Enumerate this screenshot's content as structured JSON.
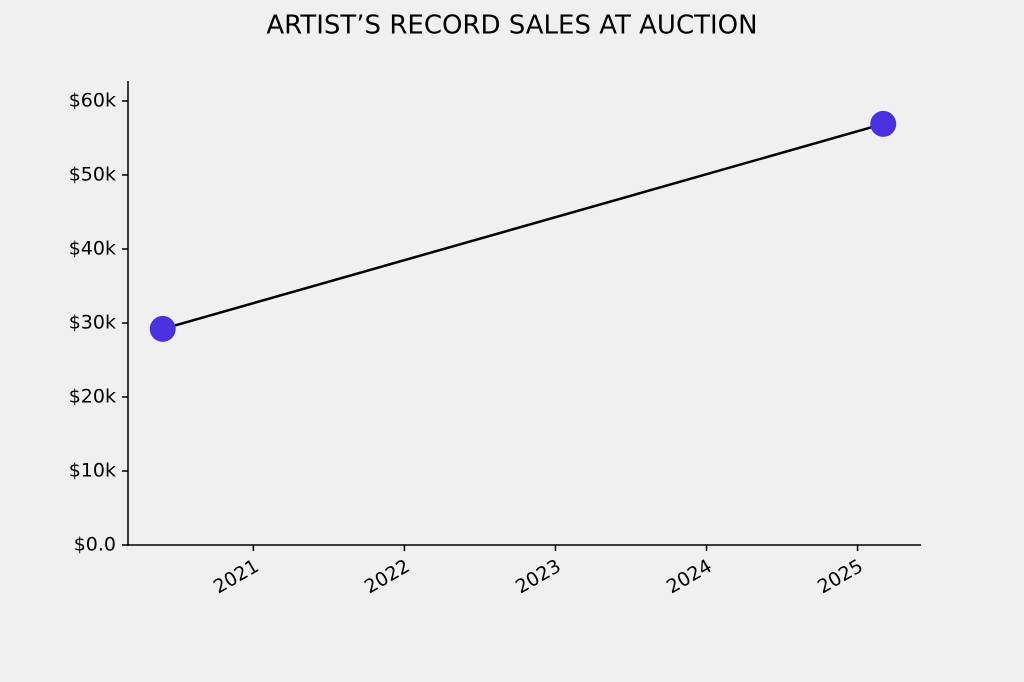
{
  "chart_data": {
    "type": "line",
    "title": "ARTIST’S RECORD SALES AT AUCTION",
    "x": [
      2020.4,
      2025.17
    ],
    "values": [
      29200,
      56900
    ],
    "line_color": "#000000",
    "marker_color": "#4b32e0",
    "xlim": [
      2020.17,
      2025.42
    ],
    "xticks": [
      2021,
      2022,
      2023,
      2024,
      2025
    ],
    "ylim": [
      0,
      62700
    ],
    "yticks": [
      {
        "value": 0,
        "label": "$0.0"
      },
      {
        "value": 10000,
        "label": "$10k"
      },
      {
        "value": 20000,
        "label": "$20k"
      },
      {
        "value": 30000,
        "label": "$30k"
      },
      {
        "value": 40000,
        "label": "$40k"
      },
      {
        "value": 50000,
        "label": "$50k"
      },
      {
        "value": 60000,
        "label": "$60k"
      }
    ]
  }
}
